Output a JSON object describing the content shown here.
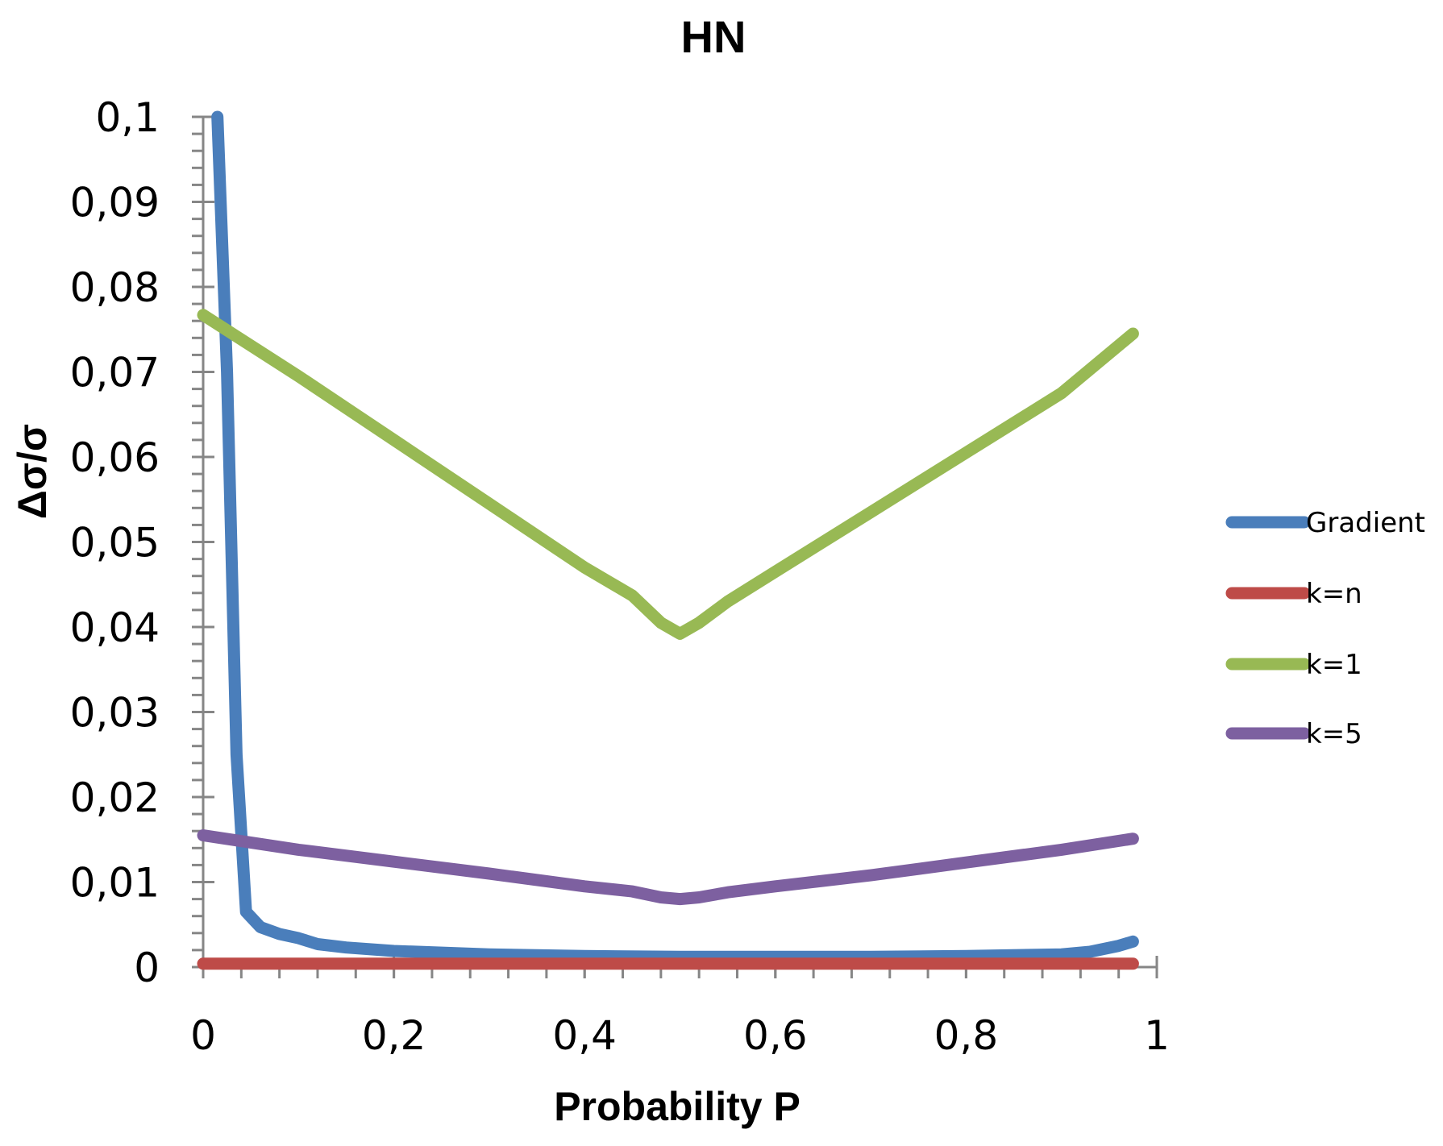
{
  "chart_data": {
    "type": "line",
    "title": "HN",
    "xlabel": "Probability P",
    "ylabel": "Δσ/σ",
    "xlim": [
      0,
      1
    ],
    "ylim": [
      0,
      0.1
    ],
    "x_ticks": [
      "0",
      "0,2",
      "0,4",
      "0,6",
      "0,8",
      "1"
    ],
    "y_ticks": [
      "0",
      "0,01",
      "0,02",
      "0,03",
      "0,04",
      "0,05",
      "0,06",
      "0,07",
      "0,08",
      "0,09",
      "0,1"
    ],
    "grid": false,
    "legend_position": "right",
    "series": [
      {
        "name": "Gradient",
        "color": "#4a7ebb",
        "points": [
          [
            0.015,
            0.1
          ],
          [
            0.025,
            0.07
          ],
          [
            0.035,
            0.025
          ],
          [
            0.045,
            0.0065
          ],
          [
            0.06,
            0.0047
          ],
          [
            0.08,
            0.0039
          ],
          [
            0.1,
            0.0034
          ],
          [
            0.12,
            0.0027
          ],
          [
            0.15,
            0.0023
          ],
          [
            0.2,
            0.0019
          ],
          [
            0.3,
            0.0015
          ],
          [
            0.4,
            0.0013
          ],
          [
            0.5,
            0.0012
          ],
          [
            0.6,
            0.0012
          ],
          [
            0.7,
            0.0012
          ],
          [
            0.8,
            0.0013
          ],
          [
            0.9,
            0.0015
          ],
          [
            0.93,
            0.0018
          ],
          [
            0.96,
            0.0025
          ],
          [
            0.975,
            0.003
          ]
        ]
      },
      {
        "name": "k=n",
        "color": "#be4b48",
        "points": [
          [
            0.0,
            0.0004
          ],
          [
            0.2,
            0.0004
          ],
          [
            0.4,
            0.0004
          ],
          [
            0.6,
            0.0004
          ],
          [
            0.8,
            0.0004
          ],
          [
            0.975,
            0.0004
          ]
        ]
      },
      {
        "name": "k=1",
        "color": "#98b954",
        "points": [
          [
            0.0,
            0.0767
          ],
          [
            0.1,
            0.0695
          ],
          [
            0.2,
            0.062
          ],
          [
            0.3,
            0.0545
          ],
          [
            0.4,
            0.047
          ],
          [
            0.45,
            0.0437
          ],
          [
            0.48,
            0.0405
          ],
          [
            0.5,
            0.0392
          ],
          [
            0.52,
            0.0405
          ],
          [
            0.55,
            0.043
          ],
          [
            0.6,
            0.0465
          ],
          [
            0.7,
            0.0535
          ],
          [
            0.8,
            0.0605
          ],
          [
            0.9,
            0.0675
          ],
          [
            0.975,
            0.0745
          ]
        ]
      },
      {
        "name": "k=5",
        "color": "#7d60a0",
        "points": [
          [
            0.0,
            0.0155
          ],
          [
            0.1,
            0.0138
          ],
          [
            0.2,
            0.0124
          ],
          [
            0.3,
            0.011
          ],
          [
            0.4,
            0.0095
          ],
          [
            0.45,
            0.0089
          ],
          [
            0.48,
            0.0082
          ],
          [
            0.5,
            0.008
          ],
          [
            0.52,
            0.0082
          ],
          [
            0.55,
            0.0088
          ],
          [
            0.6,
            0.0095
          ],
          [
            0.7,
            0.0108
          ],
          [
            0.8,
            0.0123
          ],
          [
            0.9,
            0.0138
          ],
          [
            0.975,
            0.0151
          ]
        ]
      }
    ]
  }
}
